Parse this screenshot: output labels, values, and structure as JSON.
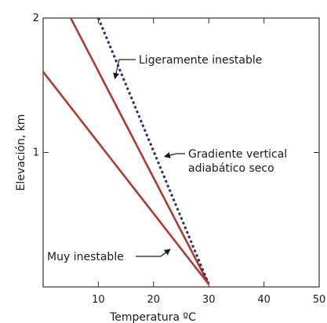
{
  "chart_data": {
    "type": "line",
    "title": "",
    "xlabel": "Temperatura ºC",
    "ylabel": "Elevación, km",
    "xlim": [
      0,
      50
    ],
    "ylim": [
      0,
      2
    ],
    "x_ticks": [
      10,
      20,
      30,
      40,
      50
    ],
    "y_ticks": [
      1,
      2
    ],
    "grid": false,
    "series": [
      {
        "name": "Ligeramente inestable",
        "color": "#b03a2e",
        "style": "solid",
        "points": [
          [
            5,
            2.0
          ],
          [
            30,
            0.02
          ]
        ]
      },
      {
        "name": "Gradiente vertical adiabático seco",
        "color": "#2b2a7a",
        "style": "dotted",
        "points": [
          [
            10,
            2.0
          ],
          [
            30,
            0.02
          ]
        ]
      },
      {
        "name": "Muy inestable",
        "color": "#b03a2e",
        "style": "solid",
        "points": [
          [
            0,
            1.6
          ],
          [
            30,
            0.02
          ]
        ]
      }
    ],
    "annotations": [
      {
        "text": "Ligeramente inestable",
        "lines": [
          "Ligeramente inestable"
        ],
        "points_to": [
          13,
          1.55
        ]
      },
      {
        "text": "Gradiente vertical adiabático seco",
        "lines": [
          "Gradiente vertical",
          "adiabático seco"
        ],
        "points_to": [
          22,
          0.97
        ]
      },
      {
        "text": "Muy inestable",
        "lines": [
          "Muy inestable"
        ],
        "points_to": [
          23,
          0.28
        ]
      }
    ]
  }
}
